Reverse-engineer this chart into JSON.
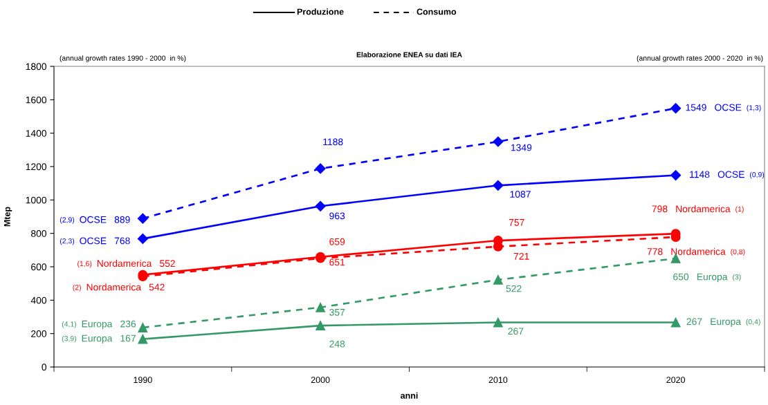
{
  "chart_data": {
    "type": "line",
    "xlabel": "anni",
    "ylabel": "Mtep",
    "categories": [
      "1990",
      "2000",
      "2010",
      "2020"
    ],
    "ylim": [
      0,
      1800
    ],
    "yticks": [
      0,
      200,
      400,
      600,
      800,
      1000,
      1200,
      1400,
      1600,
      1800
    ],
    "grid": false,
    "data_labels": true,
    "annotations": [
      "Produzione",
      "Consumo",
      "(annual growth rates 1990 - 2000  in %)",
      "Elaborazione ENEA su dati IEA",
      "(annual growth rates 2000 - 2020  in %)",
      "(2,3)",
      "(2,9)",
      "(1,6)",
      "(2)",
      "(3,9)",
      "(4,1)",
      "(0,9)",
      "(1,3)",
      "(1)",
      "(0,8)",
      "(0,4)",
      "(3)"
    ],
    "series": [
      {
        "name": "OCSE",
        "color": "#0000ff",
        "marker": "diamond",
        "line_style": "solid",
        "values": [
          768,
          963,
          1087,
          1148
        ]
      },
      {
        "name": "OCSE",
        "color": "#0000ff",
        "marker": "diamond",
        "line_style": "dashed",
        "values": [
          889,
          1188,
          1349,
          1549
        ]
      },
      {
        "name": "Nordamerica",
        "color": "#ff0000",
        "marker": "circle",
        "line_style": "solid",
        "values": [
          552,
          659,
          757,
          798
        ]
      },
      {
        "name": "Nordamerica",
        "color": "#ff0000",
        "marker": "circle",
        "line_style": "dashed",
        "values": [
          542,
          651,
          721,
          778
        ]
      },
      {
        "name": "Europa",
        "color": "#339966",
        "marker": "triangle",
        "line_style": "solid",
        "values": [
          167,
          248,
          267,
          267
        ]
      },
      {
        "name": "Europa",
        "color": "#339966",
        "marker": "triangle",
        "line_style": "dashed",
        "values": [
          236,
          357,
          522,
          650
        ]
      }
    ]
  }
}
